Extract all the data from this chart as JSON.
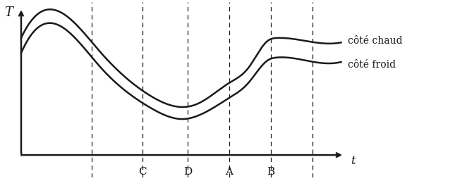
{
  "title": "",
  "xlabel": "t",
  "ylabel": "T",
  "vline_positions": [
    0.22,
    0.38,
    0.52,
    0.65,
    0.78,
    0.91
  ],
  "vline_labels": [
    "",
    "C",
    "D",
    "A",
    "B",
    ""
  ],
  "chaud_label": "côté chaud",
  "froid_label": "côté froid",
  "line_color": "#1a1a1a",
  "background_color": "#ffffff",
  "font_size": 10,
  "axis_lw": 1.8,
  "curve_lw": 1.8
}
